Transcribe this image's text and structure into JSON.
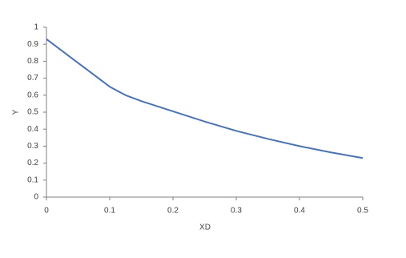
{
  "chart_data": {
    "type": "line",
    "x_label": "XD",
    "y_label": "Y",
    "x": [
      0,
      0.025,
      0.05,
      0.075,
      0.1,
      0.125,
      0.15,
      0.2,
      0.25,
      0.3,
      0.35,
      0.4,
      0.45,
      0.5
    ],
    "series": [
      {
        "name": "Y",
        "color": "#4472c4",
        "values": [
          0.93,
          0.86,
          0.79,
          0.72,
          0.65,
          0.6,
          0.565,
          0.505,
          0.445,
          0.39,
          0.343,
          0.3,
          0.263,
          0.23
        ]
      }
    ],
    "xlim": [
      0,
      0.5
    ],
    "xticks": [
      0,
      0.1,
      0.2,
      0.3,
      0.4,
      0.5
    ],
    "ylim": [
      0,
      1
    ],
    "yticks": [
      0,
      0.1,
      0.2,
      0.3,
      0.4,
      0.5,
      0.6,
      0.7,
      0.8,
      0.9,
      1
    ],
    "grid": false
  }
}
